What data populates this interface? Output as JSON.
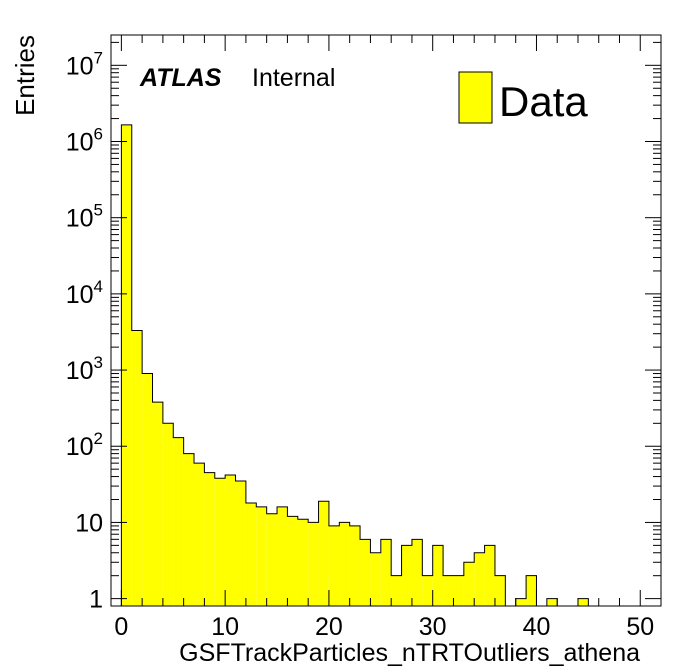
{
  "chart_data": {
    "type": "bar",
    "xlabel": "GSFTrackParticles_nTRTOutliers_athena",
    "ylabel": "Entries",
    "xlim": [
      -1,
      52
    ],
    "ylim": [
      0.8,
      25000000
    ],
    "yscale": "log",
    "bin_width": 1,
    "x": [
      -1,
      0,
      1,
      2,
      3,
      4,
      5,
      6,
      7,
      8,
      9,
      10,
      11,
      12,
      13,
      14,
      15,
      16,
      17,
      18,
      19,
      20,
      21,
      22,
      23,
      24,
      25,
      26,
      27,
      28,
      29,
      30,
      31,
      32,
      33,
      34,
      35,
      36,
      37,
      38,
      39,
      40,
      41,
      42,
      43,
      44,
      45,
      46,
      47,
      48,
      49,
      50,
      51
    ],
    "values": [
      0,
      1650000,
      3300,
      900,
      380,
      200,
      130,
      80,
      60,
      45,
      38,
      42,
      35,
      18,
      16,
      13,
      16,
      12,
      11,
      10,
      19,
      9,
      10,
      9,
      6,
      4,
      6,
      2,
      5,
      6,
      2,
      5,
      2,
      2,
      3,
      4,
      5,
      2,
      0,
      1,
      2,
      0,
      1,
      0,
      0,
      1,
      0,
      0,
      0,
      0,
      0,
      0,
      0
    ],
    "x_ticks": [
      "0",
      "10",
      "20",
      "30",
      "40",
      "50"
    ],
    "y_ticks": [
      "1",
      "10",
      "10^2",
      "10^3",
      "10^4",
      "10^5",
      "10^6",
      "10^7"
    ],
    "fill_color": "#ffff00",
    "legend": {
      "position": "top-right",
      "entries": [
        "Data"
      ]
    },
    "annotations": {
      "experiment": "ATLAS",
      "status": "Internal"
    },
    "grid": false
  }
}
